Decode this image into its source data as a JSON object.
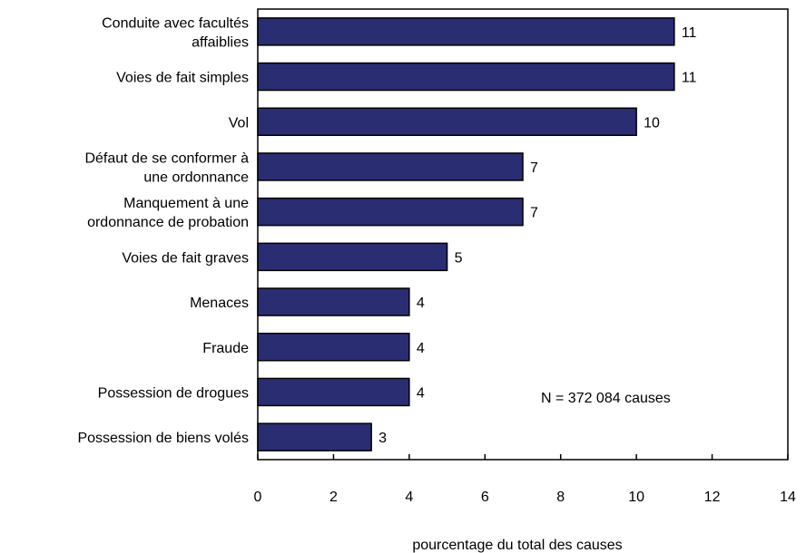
{
  "chart_data": {
    "type": "bar",
    "orientation": "horizontal",
    "categories": [
      [
        "Conduite avec facultés",
        "affaiblies"
      ],
      [
        "Voies de fait simples"
      ],
      [
        "Vol"
      ],
      [
        "Défaut de se conformer à",
        "une ordonnance"
      ],
      [
        "Manquement à une",
        "ordonnance de probation"
      ],
      [
        "Voies de fait graves"
      ],
      [
        "Menaces"
      ],
      [
        "Fraude"
      ],
      [
        "Possession de drogues"
      ],
      [
        "Possession de biens volés"
      ]
    ],
    "values": [
      11,
      11,
      10,
      7,
      7,
      5,
      4,
      4,
      4,
      3
    ],
    "xlabel": "pourcentage du total des causes",
    "ylabel": "",
    "xlim": [
      0,
      14
    ],
    "xticks": [
      0,
      2,
      4,
      6,
      8,
      10,
      12,
      14
    ],
    "annotation": "N = 372 084 causes",
    "bar_color": "#2b2d73",
    "grid": false
  }
}
